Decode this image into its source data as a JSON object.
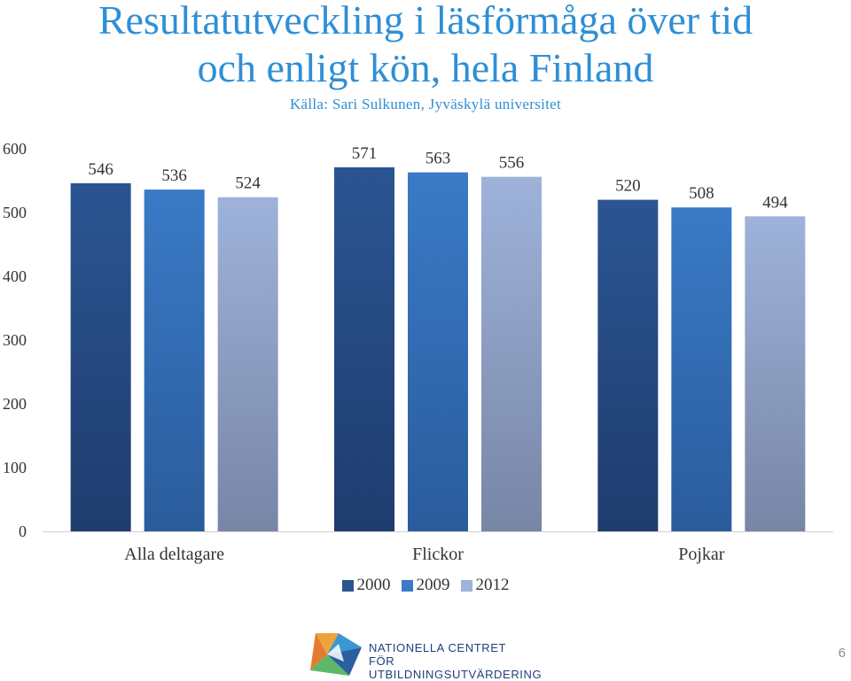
{
  "title_line1": "Resultatutveckling i läsförmåga över tid",
  "title_line2": "och enligt kön, hela Finland",
  "subtitle": "Källa: Sari Sulkunen, Jyväskylä universitet",
  "chart_data": {
    "type": "bar",
    "categories": [
      "Alla deltagare",
      "Flickor",
      "Pojkar"
    ],
    "series": [
      {
        "name": "2000",
        "values": [
          546,
          571,
          520
        ],
        "color": "#2b5592"
      },
      {
        "name": "2009",
        "values": [
          536,
          563,
          508
        ],
        "color": "#3a7ac6"
      },
      {
        "name": "2012",
        "values": [
          524,
          556,
          494
        ],
        "color": "#9eb2da"
      }
    ],
    "ylim": [
      0,
      600
    ],
    "yticks": [
      "0",
      "100",
      "200",
      "300",
      "400",
      "500",
      "600"
    ],
    "grid": false,
    "legend_position": "bottom"
  },
  "logo": {
    "line1": "NATIONELLA CENTRET",
    "line2": "FÖR UTBILDNINGSUTVÄRDERING"
  },
  "page_number": "6"
}
